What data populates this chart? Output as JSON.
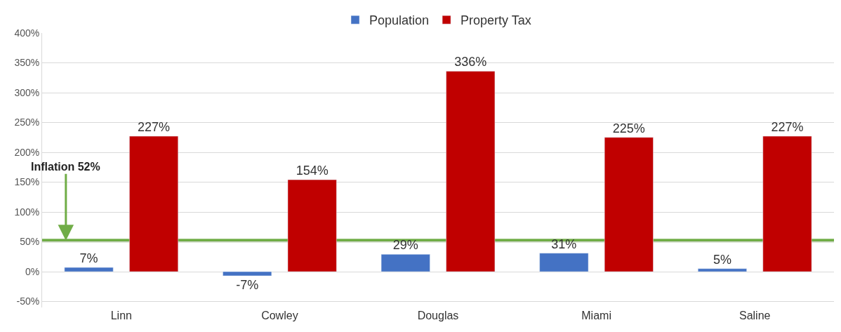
{
  "chart_data": {
    "type": "bar",
    "categories": [
      "Linn",
      "Cowley",
      "Douglas",
      "Miami",
      "Saline"
    ],
    "series": [
      {
        "name": "Population",
        "color": "#4472c4",
        "values": [
          7,
          -7,
          29,
          31,
          5
        ],
        "value_labels": [
          "7%",
          "-7%",
          "29%",
          "31%",
          "5%"
        ]
      },
      {
        "name": "Property Tax",
        "color": "#c00000",
        "values": [
          227,
          154,
          336,
          225,
          227
        ],
        "value_labels": [
          "227%",
          "154%",
          "336%",
          "225%",
          "227%"
        ]
      }
    ],
    "ylim": [
      -60,
      400
    ],
    "yticks": [
      {
        "value": -50,
        "label": "-50%"
      },
      {
        "value": 0,
        "label": "0%"
      },
      {
        "value": 50,
        "label": "50%"
      },
      {
        "value": 100,
        "label": "100%"
      },
      {
        "value": 150,
        "label": "150%"
      },
      {
        "value": 200,
        "label": "200%"
      },
      {
        "value": 250,
        "label": "250%"
      },
      {
        "value": 300,
        "label": "300%"
      },
      {
        "value": 350,
        "label": "350%"
      },
      {
        "value": 400,
        "label": "400%"
      }
    ],
    "ref_lines": [
      {
        "axis": "y",
        "value": 52,
        "label": "Inflation 52%",
        "color": "#70ad47"
      }
    ],
    "grid": "y",
    "legend": "top"
  }
}
